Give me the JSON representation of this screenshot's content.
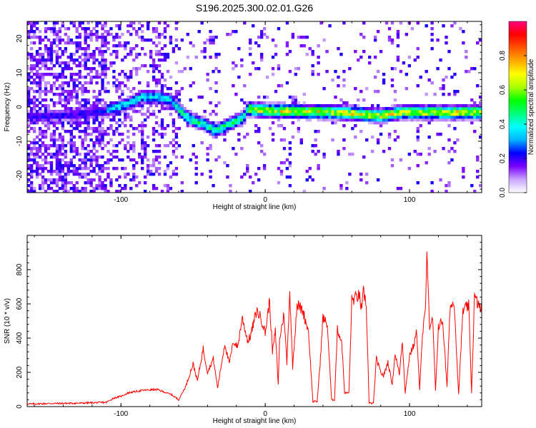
{
  "figure": {
    "title": "S196.2025.300.02.01.G26"
  },
  "chart_data": [
    {
      "type": "heatmap",
      "xlabel": "Height of straight line (km)",
      "ylabel": "Frequency (Hz)",
      "xlim": [
        -165,
        150
      ],
      "ylim": [
        -25,
        25
      ],
      "xticks": [
        -100,
        0,
        100
      ],
      "yticks": [
        -20,
        -10,
        0,
        10,
        20
      ],
      "colorbar": {
        "label": "Normalized spectral amplitude",
        "range": [
          0,
          1
        ],
        "ticks": [
          0.0,
          0.2,
          0.4,
          0.6,
          0.8
        ],
        "colors": [
          "#ffffff",
          "#c9a5ff",
          "#7a00ff",
          "#0000ff",
          "#00b4ff",
          "#00ffff",
          "#00ff7a",
          "#00ff00",
          "#aaff00",
          "#ffff00",
          "#ffaa00",
          "#ff5500",
          "#ff0000",
          "#ff0080"
        ]
      },
      "ridge": [
        {
          "x": -160,
          "y": -3
        },
        {
          "x": -130,
          "y": -2
        },
        {
          "x": -110,
          "y": -1
        },
        {
          "x": -95,
          "y": 1
        },
        {
          "x": -85,
          "y": 3
        },
        {
          "x": -75,
          "y": 3
        },
        {
          "x": -65,
          "y": 2
        },
        {
          "x": -57,
          "y": -2
        },
        {
          "x": -50,
          "y": -4
        },
        {
          "x": -42,
          "y": -5
        },
        {
          "x": -35,
          "y": -7
        },
        {
          "x": -25,
          "y": -5
        },
        {
          "x": -15,
          "y": -3
        },
        {
          "x": -12,
          "y": -0.5
        },
        {
          "x": 0,
          "y": -1
        },
        {
          "x": 50,
          "y": -1.5
        },
        {
          "x": 80,
          "y": -2.5
        },
        {
          "x": 95,
          "y": -1.5
        },
        {
          "x": 150,
          "y": -1.5
        }
      ],
      "isolated_peak": {
        "x": -37,
        "y": 19.5
      }
    },
    {
      "type": "line",
      "xlabel": "Height of straight line (km)",
      "ylabel": "SNR (10 * v/v)",
      "xlim": [
        -165,
        150
      ],
      "ylim": [
        0,
        1000
      ],
      "xticks": [
        -100,
        0,
        100
      ],
      "yticks": [
        0,
        200,
        400,
        600,
        800
      ],
      "color": "#ff0000",
      "series": [
        {
          "name": "SNR",
          "points": [
            [
              -165,
              15
            ],
            [
              -150,
              18
            ],
            [
              -130,
              20
            ],
            [
              -110,
              25
            ],
            [
              -105,
              50
            ],
            [
              -100,
              60
            ],
            [
              -95,
              80
            ],
            [
              -85,
              95
            ],
            [
              -75,
              100
            ],
            [
              -65,
              70
            ],
            [
              -60,
              40
            ],
            [
              -55,
              120
            ],
            [
              -50,
              250
            ],
            [
              -47,
              150
            ],
            [
              -43,
              340
            ],
            [
              -40,
              200
            ],
            [
              -36,
              280
            ],
            [
              -33,
              110
            ],
            [
              -28,
              370
            ],
            [
              -25,
              250
            ],
            [
              -22,
              380
            ],
            [
              -19,
              350
            ],
            [
              -16,
              520
            ],
            [
              -12,
              380
            ],
            [
              -10,
              420
            ],
            [
              -6,
              560
            ],
            [
              -3,
              520
            ],
            [
              0,
              430
            ],
            [
              3,
              620
            ],
            [
              5,
              320
            ],
            [
              7,
              440
            ],
            [
              9,
              130
            ],
            [
              10,
              400
            ],
            [
              13,
              540
            ],
            [
              15,
              250
            ],
            [
              17,
              680
            ],
            [
              19,
              230
            ],
            [
              22,
              600
            ],
            [
              26,
              560
            ],
            [
              30,
              440
            ],
            [
              33,
              30
            ],
            [
              36,
              30
            ],
            [
              38,
              250
            ],
            [
              40,
              520
            ],
            [
              43,
              480
            ],
            [
              46,
              40
            ],
            [
              48,
              40
            ],
            [
              50,
              450
            ],
            [
              53,
              380
            ],
            [
              55,
              80
            ],
            [
              58,
              80
            ],
            [
              60,
              620
            ],
            [
              65,
              650
            ],
            [
              67,
              560
            ],
            [
              68,
              670
            ],
            [
              70,
              600
            ],
            [
              72,
              20
            ],
            [
              75,
              20
            ],
            [
              77,
              280
            ],
            [
              80,
              200
            ],
            [
              82,
              180
            ],
            [
              85,
              260
            ],
            [
              88,
              130
            ],
            [
              90,
              310
            ],
            [
              93,
              190
            ],
            [
              95,
              390
            ],
            [
              97,
              80
            ],
            [
              100,
              300
            ],
            [
              103,
              360
            ],
            [
              105,
              440
            ],
            [
              107,
              100
            ],
            [
              109,
              420
            ],
            [
              111,
              560
            ],
            [
              112,
              950
            ],
            [
              114,
              430
            ],
            [
              116,
              520
            ],
            [
              118,
              90
            ],
            [
              120,
              470
            ],
            [
              123,
              500
            ],
            [
              126,
              110
            ],
            [
              128,
              580
            ],
            [
              131,
              610
            ],
            [
              134,
              70
            ],
            [
              137,
              560
            ],
            [
              141,
              590
            ],
            [
              143,
              80
            ],
            [
              145,
              640
            ],
            [
              148,
              590
            ],
            [
              150,
              560
            ]
          ]
        }
      ]
    }
  ]
}
